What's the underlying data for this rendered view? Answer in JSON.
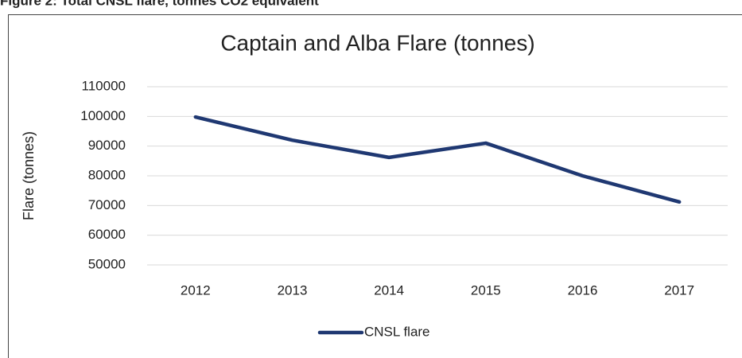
{
  "caption": "Figure 2: Total CNSL flare, tonnes CO2 equivalent",
  "chart_data": {
    "type": "line",
    "title": "Captain and Alba Flare (tonnes)",
    "y_label": "Flare (tonnes)",
    "categories": [
      "2012",
      "2013",
      "2014",
      "2015",
      "2016",
      "2017"
    ],
    "series": [
      {
        "name": "CNSL flare",
        "color": "#1f3872",
        "values": [
          99800,
          92000,
          86200,
          91000,
          80000,
          71200
        ]
      }
    ],
    "ylim": [
      50000,
      110000
    ],
    "yticks": [
      50000,
      60000,
      70000,
      80000,
      90000,
      100000,
      110000
    ],
    "grid": true,
    "legend": "bottom"
  }
}
